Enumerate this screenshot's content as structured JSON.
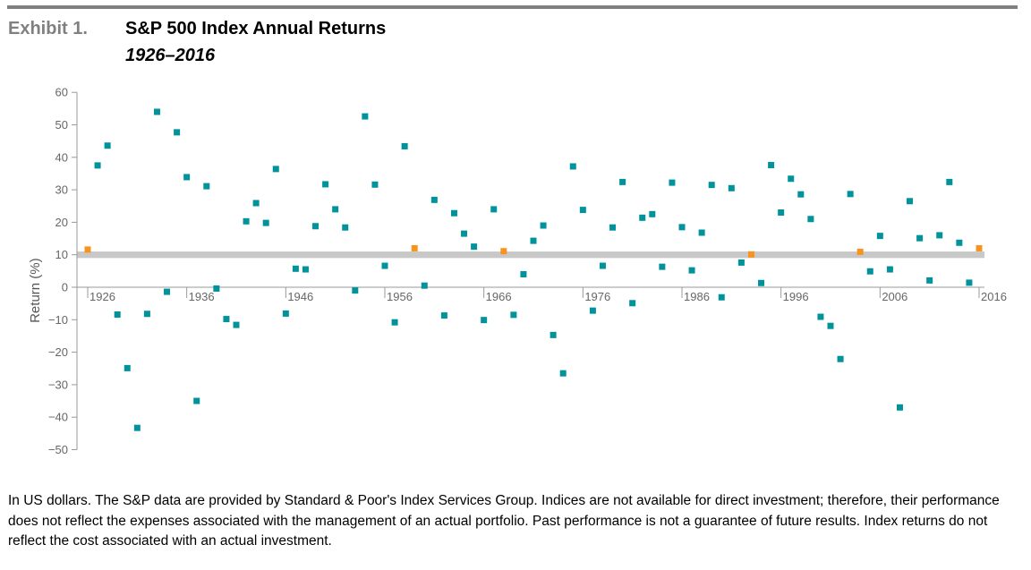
{
  "header": {
    "exhibit": "Exhibit 1.",
    "title": "S&P 500 Index Annual Returns",
    "subtitle": "1926–2016"
  },
  "footnote": "In US dollars. The S&P data are provided by Standard & Poor's Index Services Group. Indices are not available for direct investment; therefore, their performance does not reflect the expenses associated with the management of an actual portfolio. Past performance is not a guarantee of future results. Index returns do not reflect the cost associated with an actual investment.",
  "colors": {
    "regular": "#00939B",
    "highlight": "#F7941D",
    "band": "#C8C8C8",
    "axis": "#999999"
  },
  "chart_data": {
    "type": "scatter",
    "title": "S&P 500 Index Annual Returns",
    "subtitle": "1926–2016",
    "xlabel": "",
    "ylabel": "Return (%)",
    "xlim": [
      1926,
      2016
    ],
    "ylim": [
      -50,
      60
    ],
    "x_ticks": [
      1926,
      1936,
      1946,
      1956,
      1966,
      1976,
      1986,
      1996,
      2006,
      2016
    ],
    "y_ticks": [
      60,
      50,
      40,
      30,
      20,
      10,
      0,
      -10,
      -20,
      -30,
      -40,
      -50
    ],
    "y_tick_labels": [
      "60",
      "50",
      "40",
      "30",
      "20",
      "10",
      "0",
      "−10",
      "−20",
      "−30",
      "−40",
      "−50"
    ],
    "average_band": [
      9,
      11
    ],
    "highlight_years": [
      1926,
      1959,
      1968,
      1993,
      2004,
      2016
    ],
    "x": [
      1926,
      1927,
      1928,
      1929,
      1930,
      1931,
      1932,
      1933,
      1934,
      1935,
      1936,
      1937,
      1938,
      1939,
      1940,
      1941,
      1942,
      1943,
      1944,
      1945,
      1946,
      1947,
      1948,
      1949,
      1950,
      1951,
      1952,
      1953,
      1954,
      1955,
      1956,
      1957,
      1958,
      1959,
      1960,
      1961,
      1962,
      1963,
      1964,
      1965,
      1966,
      1967,
      1968,
      1969,
      1970,
      1971,
      1972,
      1973,
      1974,
      1975,
      1976,
      1977,
      1978,
      1979,
      1980,
      1981,
      1982,
      1983,
      1984,
      1985,
      1986,
      1987,
      1988,
      1989,
      1990,
      1991,
      1992,
      1993,
      1994,
      1995,
      1996,
      1997,
      1998,
      1999,
      2000,
      2001,
      2002,
      2003,
      2004,
      2005,
      2006,
      2007,
      2008,
      2009,
      2010,
      2011,
      2012,
      2013,
      2014,
      2015,
      2016
    ],
    "y": [
      11.6,
      37.5,
      43.6,
      -8.4,
      -24.9,
      -43.3,
      -8.2,
      54.0,
      -1.4,
      47.7,
      33.9,
      -35.0,
      31.1,
      -0.4,
      -9.8,
      -11.6,
      20.3,
      25.9,
      19.8,
      36.4,
      -8.1,
      5.7,
      5.5,
      18.8,
      31.7,
      24.0,
      18.4,
      -1.0,
      52.6,
      31.6,
      6.6,
      -10.8,
      43.4,
      12.0,
      0.5,
      26.9,
      -8.7,
      22.8,
      16.5,
      12.5,
      -10.1,
      24.0,
      11.1,
      -8.5,
      4.0,
      14.3,
      19.0,
      -14.7,
      -26.5,
      37.2,
      23.8,
      -7.2,
      6.6,
      18.4,
      32.4,
      -4.9,
      21.4,
      22.5,
      6.3,
      32.2,
      18.5,
      5.2,
      16.8,
      31.5,
      -3.1,
      30.5,
      7.6,
      10.1,
      1.3,
      37.6,
      23.0,
      33.4,
      28.6,
      21.0,
      -9.1,
      -11.9,
      -22.1,
      28.7,
      10.9,
      4.9,
      15.8,
      5.5,
      -37.0,
      26.5,
      15.1,
      2.1,
      16.0,
      32.4,
      13.7,
      1.4,
      12.0
    ]
  }
}
